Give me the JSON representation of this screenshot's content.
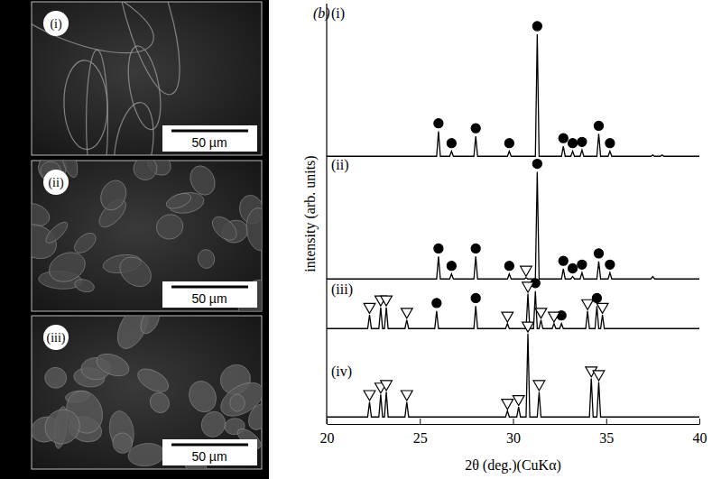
{
  "chart_data": {
    "type": "line",
    "title": "(b)",
    "x_label": "2θ (deg.)(CuKα)",
    "y_label": "intensity (arb. units)",
    "xlim": [
      20,
      40
    ],
    "xticks": [
      20,
      25,
      30,
      35,
      40
    ],
    "ylim": [
      0,
      100
    ],
    "tick_labels": "x",
    "series": [
      {
        "name": "(i)",
        "color": "#000000",
        "x": [
          20,
          25.9,
          26.0,
          26.1,
          26.6,
          26.7,
          26.8,
          27.9,
          28.0,
          28.1,
          29.7,
          29.8,
          29.9,
          31.2,
          31.3,
          31.4,
          32.6,
          32.7,
          32.8,
          33.1,
          33.2,
          33.3,
          33.6,
          33.7,
          33.8,
          34.5,
          34.6,
          34.7,
          35.1,
          35.2,
          35.3,
          37.4,
          37.5,
          37.6,
          37.9,
          38.0,
          38.1,
          40
        ],
        "values": [
          2,
          2,
          22,
          2,
          2,
          6,
          2,
          2,
          18,
          2,
          2,
          6,
          2,
          2,
          100,
          2,
          2,
          10,
          2,
          2,
          6,
          2,
          2,
          7,
          2,
          2,
          20,
          2,
          2,
          6,
          2,
          2,
          3,
          2,
          2,
          3,
          2,
          2
        ],
        "phase_markers": [
          {
            "marker": "circle",
            "x": [
              26.0,
              26.7,
              28.0,
              29.8,
              31.3,
              32.7,
              33.2,
              33.7,
              34.6,
              35.2
            ]
          }
        ]
      },
      {
        "name": "(ii)",
        "color": "#000000",
        "x": [
          20,
          25.9,
          26.0,
          26.1,
          26.6,
          26.7,
          26.8,
          27.9,
          28.0,
          28.1,
          29.7,
          29.8,
          29.9,
          30.6,
          30.7,
          30.8,
          31.2,
          31.3,
          31.4,
          32.6,
          32.7,
          32.8,
          33.1,
          33.2,
          33.3,
          33.6,
          33.7,
          33.8,
          34.5,
          34.6,
          34.7,
          35.1,
          35.2,
          35.3,
          37.4,
          37.5,
          37.6,
          40
        ],
        "values": [
          2,
          2,
          20,
          2,
          2,
          6,
          2,
          2,
          20,
          2,
          2,
          6,
          2,
          2,
          3,
          2,
          2,
          88,
          2,
          2,
          10,
          2,
          2,
          4,
          2,
          2,
          7,
          2,
          2,
          16,
          2,
          2,
          7,
          2,
          2,
          4,
          2,
          2
        ],
        "phase_markers": [
          {
            "marker": "circle",
            "x": [
              26.0,
              26.7,
              28.0,
              29.8,
              31.3,
              32.7,
              33.2,
              33.7,
              34.6,
              35.2
            ]
          },
          {
            "marker": "triangle",
            "x": [
              30.7
            ]
          }
        ]
      },
      {
        "name": "(iii)",
        "color": "#000000",
        "x": [
          20,
          22.2,
          22.3,
          22.4,
          22.8,
          22.9,
          23.0,
          23.1,
          23.2,
          23.3,
          24.2,
          24.3,
          24.4,
          25.8,
          25.9,
          26.0,
          27.9,
          28.0,
          28.1,
          29.6,
          29.7,
          29.8,
          30.7,
          30.8,
          30.9,
          31.1,
          31.2,
          31.3,
          31.4,
          31.5,
          31.6,
          32.1,
          32.2,
          32.3,
          32.5,
          32.6,
          32.7,
          33.9,
          34.0,
          34.1,
          34.4,
          34.5,
          34.6,
          34.7,
          34.8,
          34.9,
          40
        ],
        "values": [
          2,
          2,
          13,
          2,
          2,
          19,
          2,
          2,
          19,
          2,
          2,
          9,
          2,
          2,
          16,
          2,
          2,
          20,
          2,
          2,
          6,
          2,
          2,
          30,
          2,
          2,
          32,
          2,
          2,
          9,
          2,
          2,
          6,
          2,
          2,
          6,
          2,
          2,
          16,
          2,
          2,
          20,
          2,
          2,
          13,
          2,
          2
        ],
        "phase_markers": [
          {
            "marker": "circle",
            "x": [
              25.9,
              28.0,
              31.2,
              32.6,
              34.5
            ]
          },
          {
            "marker": "triangle",
            "x": [
              22.3,
              22.9,
              23.2,
              24.3,
              29.7,
              30.8,
              31.5,
              32.2,
              34.0,
              34.8
            ]
          }
        ]
      },
      {
        "name": "(iv)",
        "color": "#000000",
        "x": [
          20,
          22.2,
          22.3,
          22.4,
          22.8,
          22.9,
          23.0,
          23.1,
          23.2,
          23.3,
          24.2,
          24.3,
          24.4,
          29.6,
          29.7,
          29.8,
          30.2,
          30.3,
          30.4,
          30.7,
          30.8,
          30.9,
          31.3,
          31.4,
          31.5,
          34.1,
          34.2,
          34.3,
          34.5,
          34.6,
          34.7,
          40
        ],
        "values": [
          2,
          2,
          14,
          2,
          2,
          20,
          2,
          2,
          22,
          2,
          2,
          14,
          2,
          2,
          7,
          2,
          2,
          10,
          2,
          2,
          69,
          2,
          2,
          22,
          2,
          2,
          33,
          2,
          2,
          30,
          2,
          2
        ],
        "phase_markers": [
          {
            "marker": "triangle",
            "x": [
              22.3,
              22.9,
              23.2,
              24.3,
              29.7,
              30.3,
              30.8,
              31.4,
              34.2,
              34.6
            ]
          }
        ]
      }
    ]
  },
  "images": [
    {
      "label": "(i)",
      "scale_bar": "50 µm"
    },
    {
      "label": "(ii)",
      "scale_bar": "50 µm"
    },
    {
      "label": "(iii)",
      "scale_bar": "50 µm"
    }
  ]
}
